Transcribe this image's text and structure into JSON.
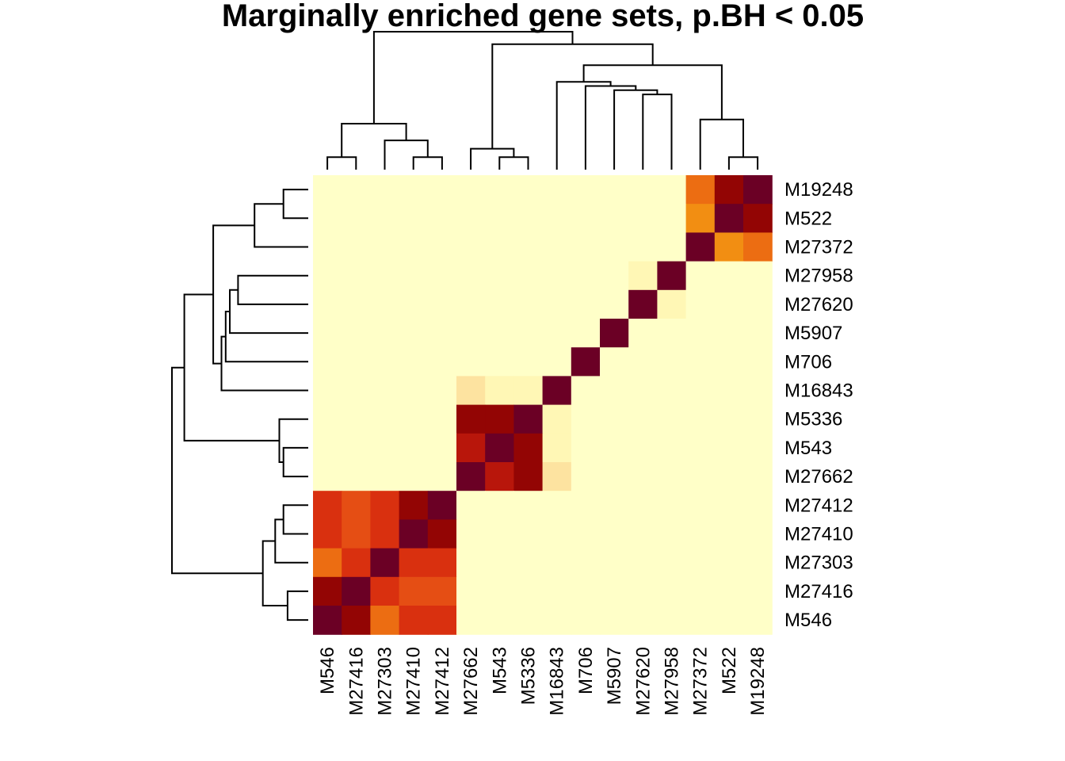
{
  "chart_data": {
    "type": "heatmap",
    "title": "Marginally enriched gene sets, p.BH < 0.05",
    "columns": [
      "M546",
      "M27416",
      "M27303",
      "M27410",
      "M27412",
      "M27662",
      "M543",
      "M5336",
      "M16843",
      "M706",
      "M5907",
      "M27620",
      "M27958",
      "M27372",
      "M522",
      "M19248"
    ],
    "rows": [
      "M19248",
      "M522",
      "M27372",
      "M27958",
      "M27620",
      "M5907",
      "M706",
      "M16843",
      "M5336",
      "M543",
      "M27662",
      "M27412",
      "M27410",
      "M27303",
      "M27416",
      "M546"
    ],
    "value_range": [
      0,
      1
    ],
    "color_scale": [
      "#FFFFC8",
      "#FFF7B5",
      "#FDE3A0",
      "#F8D38A",
      "#F5AE3A",
      "#F28E12",
      "#EC6D12",
      "#E54E14",
      "#D9300F",
      "#B8160B",
      "#930504",
      "#6B0025"
    ],
    "values": [
      [
        0,
        0,
        0,
        0,
        0,
        0,
        0,
        0,
        0,
        0,
        0,
        0,
        0,
        0.55,
        0.88,
        1
      ],
      [
        0,
        0,
        0,
        0,
        0,
        0,
        0,
        0,
        0,
        0,
        0,
        0,
        0,
        0.45,
        1,
        0.88
      ],
      [
        0,
        0,
        0,
        0,
        0,
        0,
        0,
        0,
        0,
        0,
        0,
        0,
        0,
        1,
        0.45,
        0.55
      ],
      [
        0,
        0,
        0,
        0,
        0,
        0,
        0,
        0,
        0,
        0,
        0,
        0.08,
        1,
        0,
        0,
        0
      ],
      [
        0,
        0,
        0,
        0,
        0,
        0,
        0,
        0,
        0,
        0,
        0,
        1,
        0.08,
        0,
        0,
        0
      ],
      [
        0,
        0,
        0,
        0,
        0,
        0,
        0,
        0,
        0,
        0,
        1,
        0,
        0,
        0,
        0,
        0
      ],
      [
        0,
        0,
        0,
        0,
        0,
        0,
        0,
        0,
        0,
        1,
        0,
        0,
        0,
        0,
        0,
        0
      ],
      [
        0,
        0,
        0,
        0,
        0,
        0.22,
        0.1,
        0.1,
        1,
        0,
        0,
        0,
        0,
        0,
        0,
        0
      ],
      [
        0,
        0,
        0,
        0,
        0,
        0.88,
        0.88,
        1,
        0.1,
        0,
        0,
        0,
        0,
        0,
        0,
        0
      ],
      [
        0,
        0,
        0,
        0,
        0,
        0.8,
        1,
        0.88,
        0.1,
        0,
        0,
        0,
        0,
        0,
        0,
        0
      ],
      [
        0,
        0,
        0,
        0,
        0,
        1,
        0.8,
        0.88,
        0.22,
        0,
        0,
        0,
        0,
        0,
        0,
        0
      ],
      [
        0.7,
        0.62,
        0.75,
        0.88,
        1,
        0,
        0,
        0,
        0,
        0,
        0,
        0,
        0,
        0,
        0,
        0
      ],
      [
        0.7,
        0.62,
        0.7,
        1,
        0.88,
        0,
        0,
        0,
        0,
        0,
        0,
        0,
        0,
        0,
        0,
        0
      ],
      [
        0.55,
        0.75,
        1,
        0.7,
        0.75,
        0,
        0,
        0,
        0,
        0,
        0,
        0,
        0,
        0,
        0,
        0
      ],
      [
        0.88,
        1,
        0.75,
        0.62,
        0.62,
        0,
        0,
        0,
        0,
        0,
        0,
        0,
        0,
        0,
        0,
        0
      ],
      [
        1,
        0.88,
        0.55,
        0.7,
        0.7,
        0,
        0,
        0,
        0,
        0,
        0,
        0,
        0,
        0,
        0,
        0
      ]
    ],
    "col_dendrogram": [
      [
        0,
        1,
        0.15
      ],
      [
        3,
        4,
        0.15
      ],
      [
        2,
        "n1",
        0.35
      ],
      [
        "n0",
        "n2",
        0.55
      ],
      [
        6,
        7,
        0.15
      ],
      [
        5,
        "n4",
        0.25
      ],
      [
        11,
        12,
        0.9
      ],
      [
        10,
        "n6",
        0.95
      ],
      [
        9,
        "n7",
        1.0
      ],
      [
        8,
        "n8",
        1.05
      ],
      [
        14,
        15,
        0.15
      ],
      [
        13,
        "n10",
        0.6
      ],
      [
        "n9",
        "n11",
        1.25
      ],
      [
        "n5",
        "n12",
        1.5
      ],
      [
        "n3",
        "n13",
        1.65
      ]
    ],
    "row_dendrogram": [
      [
        0,
        1,
        0.3
      ],
      [
        2,
        "n0",
        0.65
      ],
      [
        3,
        4,
        0.85
      ],
      [
        5,
        "n2",
        0.95
      ],
      [
        6,
        "n3",
        1.0
      ],
      [
        7,
        "n4",
        1.05
      ],
      [
        "n1",
        "n5",
        1.15
      ],
      [
        9,
        10,
        0.3
      ],
      [
        8,
        "n7",
        0.35
      ],
      [
        "n6",
        "n8",
        1.5
      ],
      [
        11,
        12,
        0.3
      ],
      [
        13,
        "n10",
        0.4
      ],
      [
        14,
        15,
        0.25
      ],
      [
        "n11",
        "n12",
        0.55
      ],
      [
        "n9",
        "n13",
        1.65
      ]
    ]
  }
}
